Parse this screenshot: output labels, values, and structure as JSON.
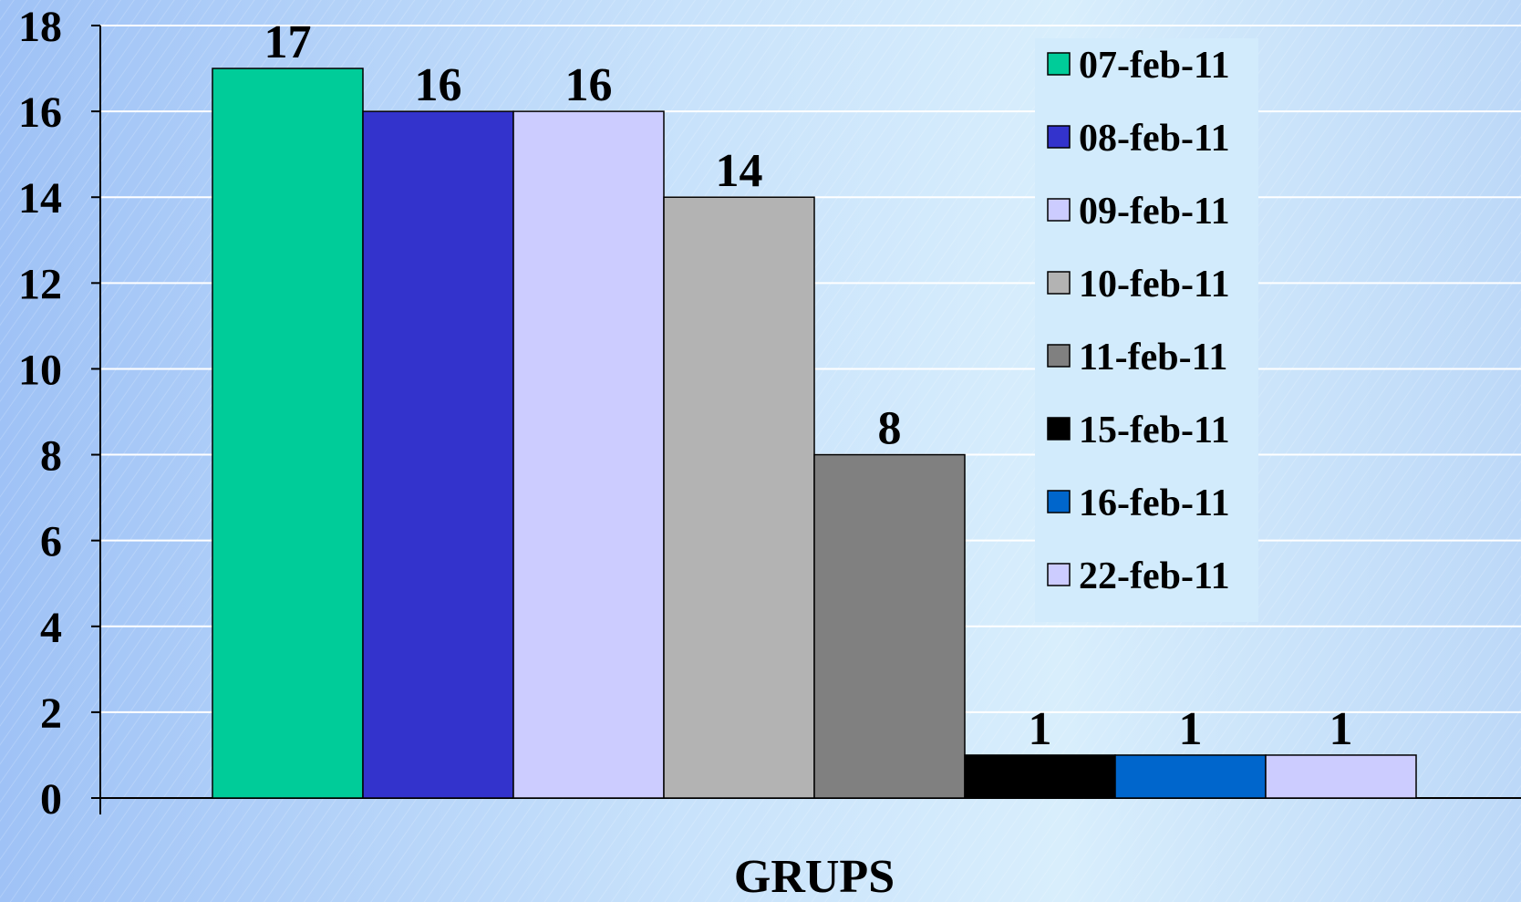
{
  "chart_data": {
    "type": "bar",
    "xlabel": "GRUPS",
    "ylabel": "",
    "ylim": [
      0,
      18
    ],
    "yticks": [
      0,
      2,
      4,
      6,
      8,
      10,
      12,
      14,
      16,
      18
    ],
    "grid": true,
    "legend_position": "top-right",
    "series": [
      {
        "name": "07-feb-11",
        "value": 17,
        "color": "#00cc99"
      },
      {
        "name": "08-feb-11",
        "value": 16,
        "color": "#3333cc"
      },
      {
        "name": "09-feb-11",
        "value": 16,
        "color": "#ccccff"
      },
      {
        "name": "10-feb-11",
        "value": 14,
        "color": "#b3b3b3"
      },
      {
        "name": "11-feb-11",
        "value": 8,
        "color": "#808080"
      },
      {
        "name": "15-feb-11",
        "value": 1,
        "color": "#000000"
      },
      {
        "name": "16-feb-11",
        "value": 1,
        "color": "#0066cc"
      },
      {
        "name": "22-feb-11",
        "value": 1,
        "color": "#ccccff"
      }
    ]
  }
}
